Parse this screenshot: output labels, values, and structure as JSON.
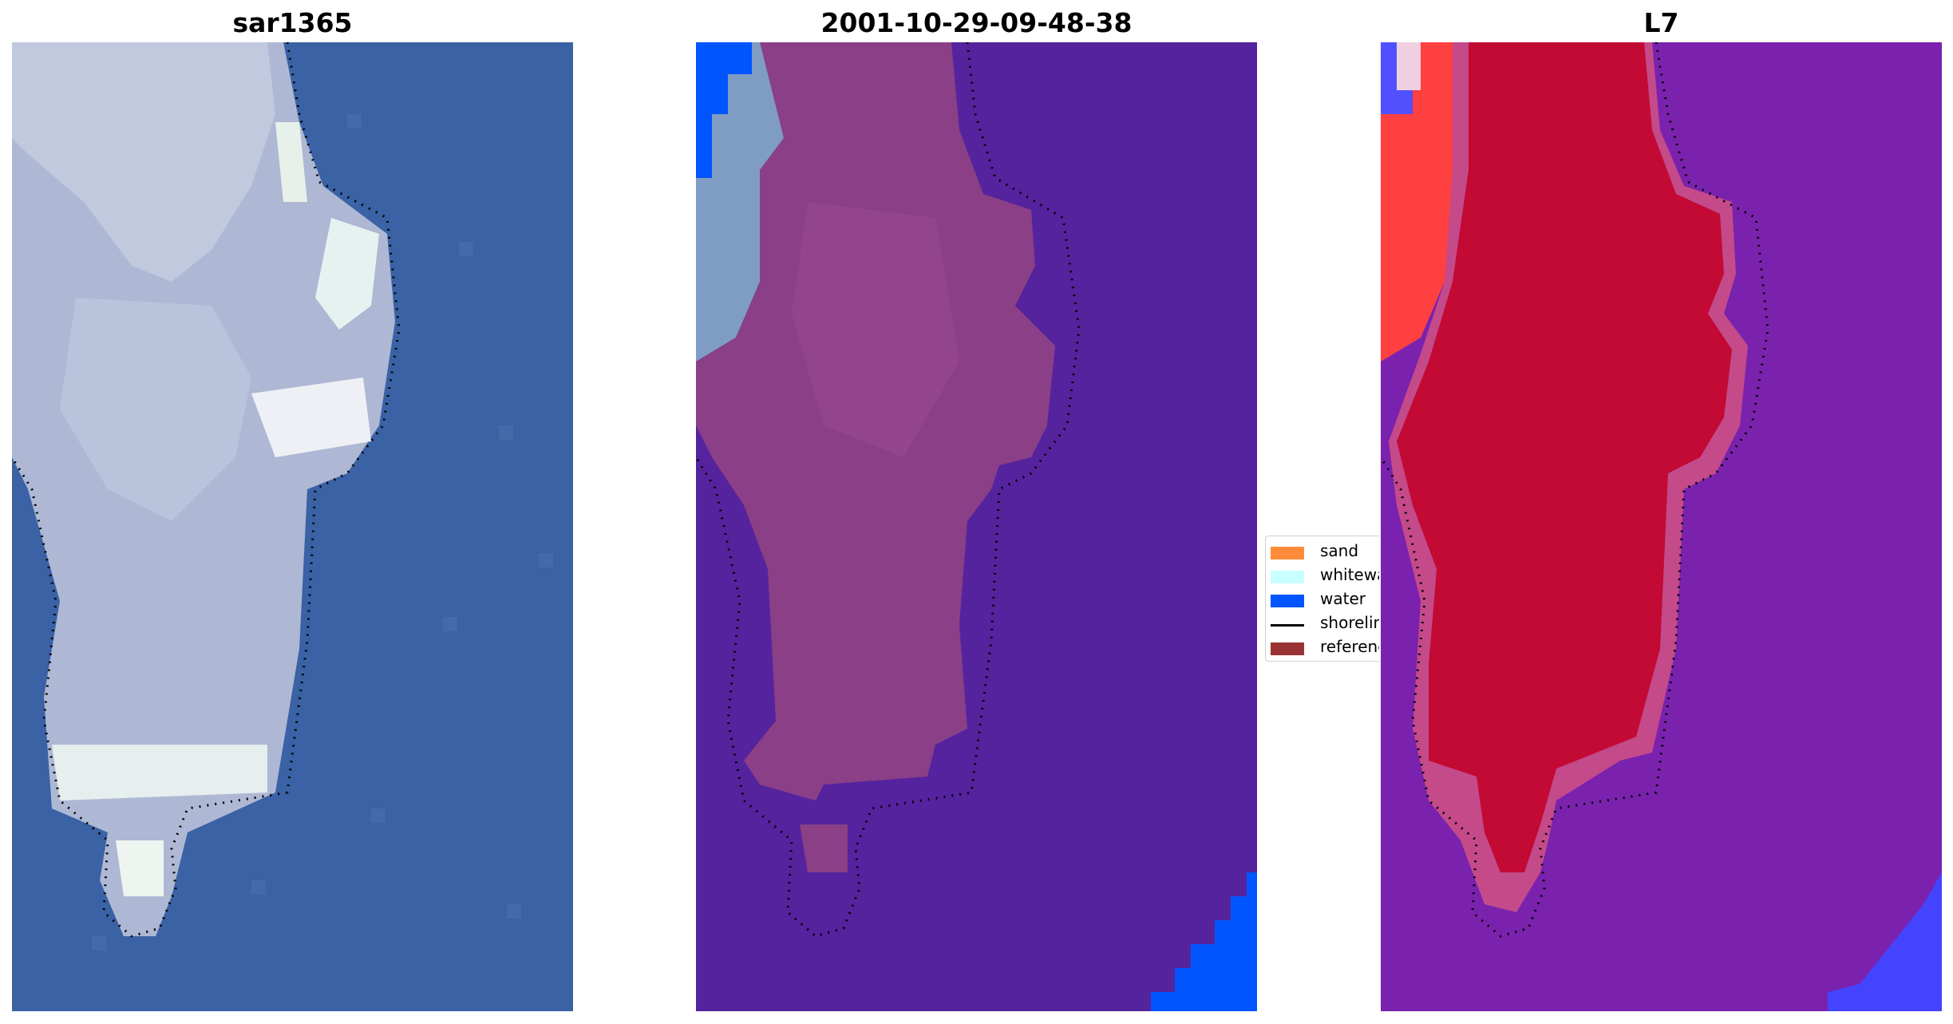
{
  "panels": [
    {
      "id": "rgb",
      "title": "sar1365"
    },
    {
      "id": "classified",
      "title": "2001-10-29-09-48-38"
    },
    {
      "id": "index",
      "title": "L7"
    }
  ],
  "legend": {
    "items": [
      {
        "label": "sand",
        "color": "#ff8c3a",
        "kind": "patch"
      },
      {
        "label": "whitewater",
        "color": "#c8ffff",
        "kind": "patch"
      },
      {
        "label": "water",
        "color": "#0055ff",
        "kind": "patch"
      },
      {
        "label": "shoreline",
        "color": "#000000",
        "kind": "line"
      },
      {
        "label": "reference shoreline buffer",
        "color": "#993333",
        "kind": "patch"
      }
    ]
  },
  "colors": {
    "rgb_water": "#3a62a4",
    "rgb_land": "#b4bed8",
    "rgb_bright": "#e6eef2",
    "class_water_overlay": "#55239e",
    "class_land": "#8a3f86",
    "class_water": "#0055ff",
    "class_whitewater": "#7f9cc4",
    "index_bg": "#7a22ad",
    "index_land": "#c20a35",
    "index_edge_red": "#ff4040",
    "index_corner_blue": "#4444ff"
  }
}
